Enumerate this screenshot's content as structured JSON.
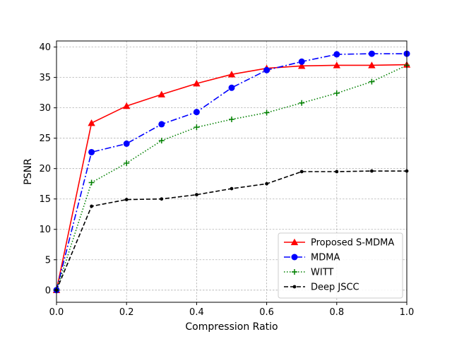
{
  "chart_data": {
    "type": "line",
    "title": "",
    "xlabel": "Compression Ratio",
    "ylabel": "PSNR",
    "xlim": [
      0,
      1.0
    ],
    "ylim": [
      -2,
      41
    ],
    "xticks": [
      0.0,
      0.2,
      0.4,
      0.6,
      0.8,
      1.0
    ],
    "xtick_labels": [
      "0.0",
      "0.2",
      "0.4",
      "0.6",
      "0.8",
      "1.0"
    ],
    "yticks": [
      0,
      5,
      10,
      15,
      20,
      25,
      30,
      35,
      40
    ],
    "ytick_labels": [
      "0",
      "5",
      "10",
      "15",
      "20",
      "25",
      "30",
      "35",
      "40"
    ],
    "grid": true,
    "legend_position": "bottom-right",
    "x": [
      0.0,
      0.1,
      0.2,
      0.3,
      0.4,
      0.5,
      0.6,
      0.7,
      0.8,
      0.9,
      1.0
    ],
    "series": [
      {
        "name": "Proposed S-MDMA",
        "color": "#ff0000",
        "style": "solid",
        "marker": "triangle",
        "values": [
          0.0,
          27.5,
          30.3,
          32.2,
          34.0,
          35.5,
          36.5,
          36.9,
          37.0,
          37.0,
          37.1
        ]
      },
      {
        "name": "MDMA",
        "color": "#0000ff",
        "style": "dashdot",
        "marker": "circle",
        "values": [
          0.0,
          22.7,
          24.1,
          27.3,
          29.3,
          33.3,
          36.2,
          37.6,
          38.8,
          38.9,
          38.9
        ]
      },
      {
        "name": "WITT",
        "color": "#008000",
        "style": "dotted",
        "marker": "plus",
        "values": [
          0.0,
          17.7,
          20.9,
          24.6,
          26.8,
          28.1,
          29.2,
          30.8,
          32.4,
          34.3,
          37.0
        ]
      },
      {
        "name": "Deep JSCC",
        "color": "#000000",
        "style": "dashed",
        "marker": "dot",
        "values": [
          0.0,
          13.8,
          14.9,
          15.0,
          15.7,
          16.7,
          17.5,
          19.5,
          19.5,
          19.6,
          19.6
        ]
      }
    ]
  }
}
